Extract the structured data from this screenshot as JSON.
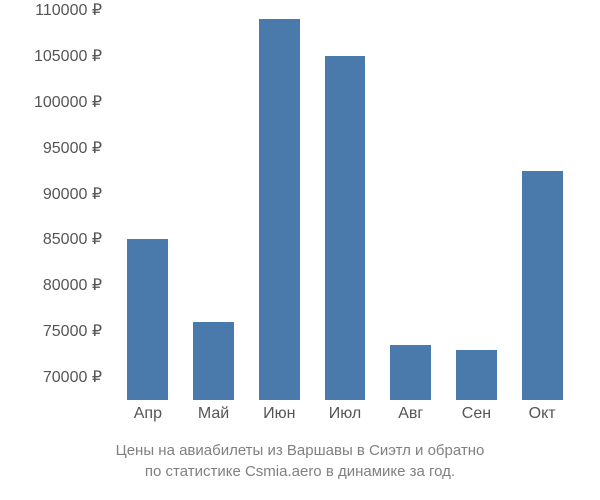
{
  "chart": {
    "type": "bar",
    "background_color": "#ffffff",
    "bar_color": "#4a7aab",
    "text_color": "#555555",
    "caption_color": "#808080",
    "label_fontsize": 16,
    "caption_fontsize": 15,
    "y_axis": {
      "min": 67500,
      "max": 110000,
      "ticks": [
        110000,
        105000,
        100000,
        95000,
        90000,
        85000,
        80000,
        75000,
        70000
      ],
      "tick_labels": [
        "110000 ₽",
        "105000 ₽",
        "100000 ₽",
        "95000 ₽",
        "90000 ₽",
        "85000 ₽",
        "80000 ₽",
        "75000 ₽",
        "70000 ₽"
      ]
    },
    "categories": [
      "Апр",
      "Май",
      "Июн",
      "Июл",
      "Авг",
      "Сен",
      "Окт"
    ],
    "values": [
      85000,
      76000,
      109000,
      105000,
      73500,
      73000,
      92500
    ],
    "bar_width_ratio": 0.62,
    "caption_line1": "Цены на авиабилеты из Варшавы в Сиэтл и обратно",
    "caption_line2": "по статистике Csmia.aero в динамике за год."
  }
}
